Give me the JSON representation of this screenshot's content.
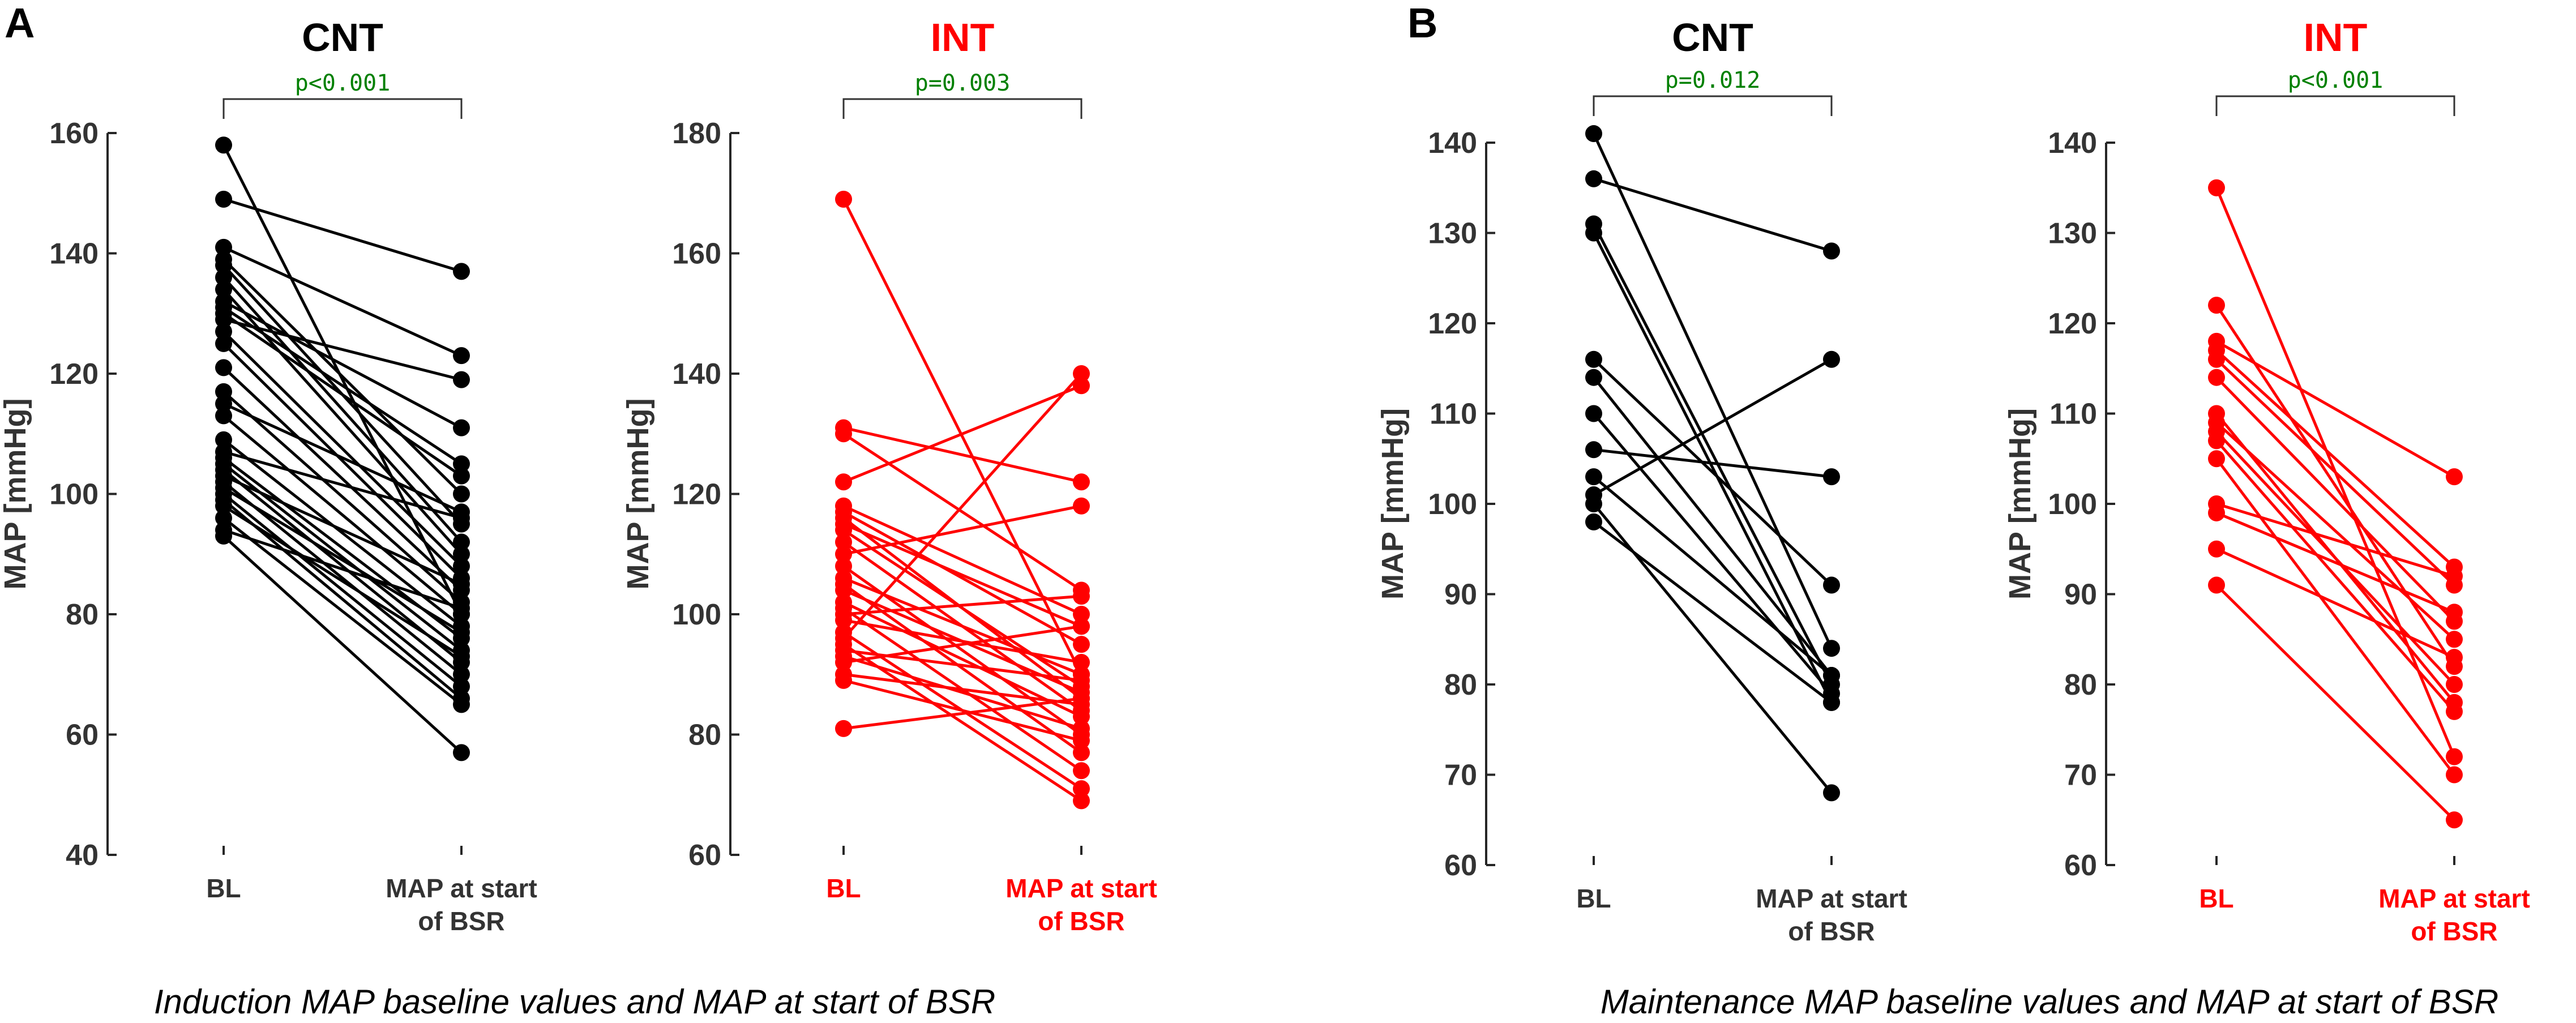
{
  "colors": {
    "cnt": "#000000",
    "int": "#ff0000",
    "pvalue": "#008000",
    "axis": "#262626"
  },
  "chart_data": [
    {
      "type": "line",
      "panel": "A",
      "title": "CNT",
      "ylabel": "MAP [mmHg]",
      "ylim": [
        40,
        160
      ],
      "yticks": [
        40,
        60,
        80,
        100,
        120,
        140,
        160
      ],
      "categories": [
        "BL",
        "MAP at start of BSR"
      ],
      "category_lines": [
        [
          "BL"
        ],
        [
          "MAP at start",
          "of BSR"
        ]
      ],
      "pvalue": "p<0.001",
      "color": "#000000",
      "pairs": [
        [
          158,
          80
        ],
        [
          149,
          137
        ],
        [
          141,
          123
        ],
        [
          139,
          100
        ],
        [
          138,
          95
        ],
        [
          136,
          92
        ],
        [
          134,
          90
        ],
        [
          132,
          111
        ],
        [
          131,
          105
        ],
        [
          130,
          103
        ],
        [
          129,
          119
        ],
        [
          127,
          88
        ],
        [
          125,
          86
        ],
        [
          121,
          84
        ],
        [
          117,
          82
        ],
        [
          115,
          97
        ],
        [
          113,
          80
        ],
        [
          109,
          78
        ],
        [
          107,
          96
        ],
        [
          106,
          76
        ],
        [
          105,
          74
        ],
        [
          104,
          72
        ],
        [
          103,
          85
        ],
        [
          102,
          70
        ],
        [
          101,
          77
        ],
        [
          100,
          68
        ],
        [
          99,
          66
        ],
        [
          98,
          73
        ],
        [
          96,
          65
        ],
        [
          94,
          81
        ],
        [
          93,
          57
        ]
      ]
    },
    {
      "type": "line",
      "panel": "A",
      "title": "INT",
      "ylabel": "MAP [mmHg]",
      "ylim": [
        60,
        180
      ],
      "yticks": [
        60,
        80,
        100,
        120,
        140,
        160,
        180
      ],
      "categories": [
        "BL",
        "MAP at start of BSR"
      ],
      "category_lines": [
        [
          "BL"
        ],
        [
          "MAP at start",
          "of BSR"
        ]
      ],
      "pvalue": "p=0.003",
      "color": "#ff0000",
      "pairs": [
        [
          169,
          90
        ],
        [
          131,
          122
        ],
        [
          130,
          104
        ],
        [
          122,
          138
        ],
        [
          118,
          100
        ],
        [
          117,
          95
        ],
        [
          116,
          86
        ],
        [
          115,
          98
        ],
        [
          114,
          88
        ],
        [
          112,
          84
        ],
        [
          110,
          118
        ],
        [
          108,
          80
        ],
        [
          106,
          90
        ],
        [
          105,
          77
        ],
        [
          104,
          87
        ],
        [
          102,
          83
        ],
        [
          101,
          74
        ],
        [
          100,
          103
        ],
        [
          99,
          92
        ],
        [
          97,
          71
        ],
        [
          96,
          140
        ],
        [
          95,
          69
        ],
        [
          94,
          89
        ],
        [
          93,
          81
        ],
        [
          92,
          98
        ],
        [
          90,
          85
        ],
        [
          89,
          79
        ],
        [
          81,
          86
        ]
      ]
    },
    {
      "type": "line",
      "panel": "B",
      "title": "CNT",
      "ylabel": "MAP [mmHg]",
      "ylim": [
        60,
        140
      ],
      "yticks": [
        60,
        70,
        80,
        90,
        100,
        110,
        120,
        130,
        140
      ],
      "categories": [
        "BL",
        "MAP at start of BSR"
      ],
      "category_lines": [
        [
          "BL"
        ],
        [
          "MAP at start",
          "of BSR"
        ]
      ],
      "pvalue": "p=0.012",
      "color": "#000000",
      "pairs": [
        [
          141,
          84
        ],
        [
          136,
          128
        ],
        [
          131,
          80
        ],
        [
          130,
          78
        ],
        [
          116,
          91
        ],
        [
          114,
          81
        ],
        [
          110,
          79
        ],
        [
          106,
          103
        ],
        [
          103,
          81
        ],
        [
          101,
          116
        ],
        [
          100,
          68
        ],
        [
          98,
          78
        ]
      ]
    },
    {
      "type": "line",
      "panel": "B",
      "title": "INT",
      "ylabel": "MAP [mmHg]",
      "ylim": [
        60,
        140
      ],
      "yticks": [
        60,
        70,
        80,
        90,
        100,
        110,
        120,
        130,
        140
      ],
      "categories": [
        "BL",
        "MAP at start of BSR"
      ],
      "category_lines": [
        [
          "BL"
        ],
        [
          "MAP at start",
          "of BSR"
        ]
      ],
      "pvalue": "p<0.001",
      "color": "#ff0000",
      "pairs": [
        [
          135,
          72
        ],
        [
          122,
          82
        ],
        [
          118,
          103
        ],
        [
          117,
          93
        ],
        [
          116,
          91
        ],
        [
          114,
          87
        ],
        [
          110,
          78
        ],
        [
          109,
          85
        ],
        [
          108,
          80
        ],
        [
          107,
          77
        ],
        [
          105,
          70
        ],
        [
          100,
          92
        ],
        [
          99,
          88
        ],
        [
          95,
          83
        ],
        [
          91,
          65
        ]
      ]
    }
  ],
  "panel_letters": [
    "A",
    "B"
  ],
  "captions": [
    "Induction MAP baseline values and MAP at start of BSR",
    "Maintenance MAP baseline values and MAP at start of BSR"
  ]
}
